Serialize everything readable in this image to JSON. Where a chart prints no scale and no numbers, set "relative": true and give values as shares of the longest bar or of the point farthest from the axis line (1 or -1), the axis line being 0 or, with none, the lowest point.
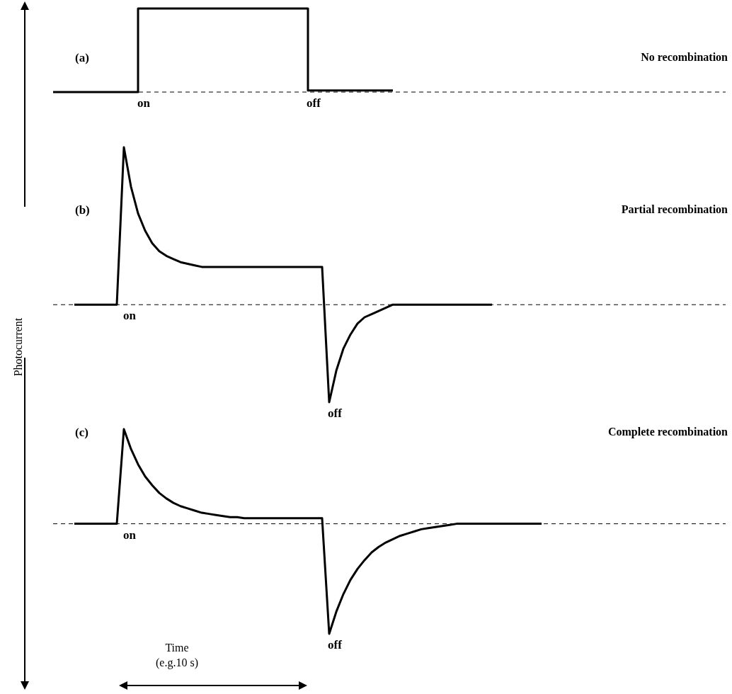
{
  "chart_data": [
    {
      "type": "step",
      "title": "(a)",
      "subtitle": "No recombination",
      "relative": true,
      "color": "#000000",
      "marker": "none",
      "annotations": [
        "on",
        "off"
      ],
      "ref_lines": [
        {
          "axis": "y",
          "value": 0,
          "line_style": "dashed"
        }
      ],
      "categories": [
        null,
        null,
        null,
        null,
        null,
        null,
        null,
        null,
        null,
        null,
        null,
        null,
        null,
        null,
        null,
        null,
        null,
        null,
        null,
        null,
        null,
        null,
        null,
        null,
        null,
        null,
        null,
        null,
        null,
        null,
        null,
        null,
        null,
        null,
        null,
        null,
        null,
        null,
        null,
        null,
        null,
        null,
        null,
        null,
        null,
        null,
        null,
        null,
        null,
        null,
        null,
        null,
        null,
        null,
        null,
        null,
        null,
        null,
        null,
        null,
        null,
        null,
        null,
        null,
        null,
        null,
        null,
        null,
        null,
        null,
        null,
        null,
        null,
        null,
        null,
        null,
        null,
        null,
        null,
        null,
        null,
        null,
        null,
        null,
        null,
        null,
        null,
        null,
        null,
        null,
        null,
        null,
        null,
        null,
        null,
        null
      ],
      "values": [
        0,
        0,
        0,
        0,
        0,
        0,
        0,
        0,
        0,
        0,
        0,
        0,
        1,
        1,
        1,
        1,
        1,
        1,
        1,
        1,
        1,
        1,
        1,
        1,
        1,
        1,
        1,
        1,
        1,
        1,
        1,
        1,
        1,
        1,
        1,
        1,
        0.02,
        0.02,
        0.02,
        0.02,
        0.02,
        0.02,
        0.02,
        0.02,
        0.02,
        0.02,
        0.02,
        0.02,
        0.02,
        null,
        null,
        null,
        null,
        null,
        null,
        null,
        null,
        null,
        null,
        null,
        null,
        null,
        null,
        null,
        null,
        null,
        null,
        null,
        null,
        null,
        null,
        null,
        null,
        null,
        null,
        null,
        null,
        null,
        null,
        null,
        null,
        null,
        null,
        null,
        null,
        null,
        null,
        null,
        null,
        null,
        null,
        null,
        null,
        null,
        null,
        null
      ]
    },
    {
      "type": "line",
      "title": "(b)",
      "subtitle": "Partial recombination",
      "ylabel": "Photocurrent",
      "relative": true,
      "color": "#000000",
      "marker": "none",
      "annotations": [
        "on",
        "off"
      ],
      "ref_lines": [
        {
          "axis": "y",
          "value": 0,
          "line_style": "dashed"
        }
      ],
      "categories": [
        null,
        null,
        null,
        null,
        null,
        null,
        null,
        null,
        null,
        null,
        null,
        null,
        null,
        null,
        null,
        null,
        null,
        null,
        null,
        null,
        null,
        null,
        null,
        null,
        null,
        null,
        null,
        null,
        null,
        null,
        null,
        null,
        null,
        null,
        null,
        null,
        null,
        null,
        null,
        null,
        null,
        null,
        null,
        null,
        null,
        null,
        null,
        null,
        null,
        null,
        null,
        null,
        null,
        null,
        null,
        null,
        null,
        null,
        null,
        null,
        null,
        null,
        null,
        null,
        null,
        null,
        null,
        null,
        null,
        null,
        null,
        null,
        null,
        null,
        null,
        null,
        null,
        null,
        null,
        null,
        null,
        null,
        null,
        null,
        null,
        null,
        null,
        null,
        null,
        null,
        null,
        null,
        null,
        null,
        null,
        null
      ],
      "values": [
        null,
        null,
        null,
        0,
        0,
        0,
        0,
        0,
        0,
        0,
        1,
        0.75,
        0.58,
        0.47,
        0.39,
        0.34,
        0.31,
        0.29,
        0.27,
        0.26,
        0.25,
        0.24,
        0.24,
        0.24,
        0.24,
        0.24,
        0.24,
        0.24,
        0.24,
        0.24,
        0.24,
        0.24,
        0.24,
        0.24,
        0.24,
        0.24,
        0.24,
        0.24,
        0.24,
        -0.62,
        -0.42,
        -0.28,
        -0.19,
        -0.12,
        -0.08,
        -0.06,
        -0.04,
        -0.02,
        0,
        0,
        0,
        0,
        0,
        0,
        0,
        0,
        0,
        0,
        0,
        0,
        0,
        0,
        0,
        null,
        null,
        null,
        null,
        null,
        null,
        null,
        null,
        null,
        null,
        null,
        null,
        null,
        null,
        null,
        null,
        null,
        null,
        null,
        null,
        null,
        null,
        null,
        null,
        null,
        null,
        null,
        null,
        null,
        null,
        null,
        null,
        null
      ]
    },
    {
      "type": "line",
      "title": "(c)",
      "subtitle": "Complete recombination",
      "xlabel": "Time\n(e.g.10 s)",
      "relative": true,
      "color": "#000000",
      "marker": "none",
      "annotations": [
        "on",
        "off"
      ],
      "ref_lines": [
        {
          "axis": "y",
          "value": 0,
          "line_style": "dashed"
        }
      ],
      "categories": [
        null,
        null,
        null,
        null,
        null,
        null,
        null,
        null,
        null,
        null,
        null,
        null,
        null,
        null,
        null,
        null,
        null,
        null,
        null,
        null,
        null,
        null,
        null,
        null,
        null,
        null,
        null,
        null,
        null,
        null,
        null,
        null,
        null,
        null,
        null,
        null,
        null,
        null,
        null,
        null,
        null,
        null,
        null,
        null,
        null,
        null,
        null,
        null,
        null,
        null,
        null,
        null,
        null,
        null,
        null,
        null,
        null,
        null,
        null,
        null,
        null,
        null,
        null,
        null,
        null,
        null,
        null,
        null,
        null,
        null,
        null,
        null,
        null,
        null,
        null,
        null,
        null,
        null,
        null,
        null,
        null,
        null,
        null,
        null,
        null,
        null,
        null,
        null,
        null,
        null,
        null,
        null,
        null,
        null,
        null,
        null
      ],
      "values": [
        null,
        null,
        null,
        0,
        0,
        0,
        0,
        0,
        0,
        0,
        0.86,
        0.68,
        0.54,
        0.43,
        0.35,
        0.28,
        0.23,
        0.19,
        0.16,
        0.14,
        0.12,
        0.1,
        0.09,
        0.08,
        0.07,
        0.06,
        0.06,
        0.05,
        0.05,
        0.05,
        0.05,
        0.05,
        0.05,
        0.05,
        0.05,
        0.05,
        0.05,
        0.05,
        0.05,
        -1,
        -0.8,
        -0.64,
        -0.51,
        -0.41,
        -0.33,
        -0.26,
        -0.21,
        -0.17,
        -0.14,
        -0.11,
        -0.09,
        -0.07,
        -0.05,
        -0.04,
        -0.03,
        -0.02,
        -0.01,
        0,
        0,
        0,
        0,
        0,
        0,
        0,
        0,
        0,
        0,
        0,
        0,
        0,
        null,
        null,
        null,
        null,
        null,
        null,
        null,
        null,
        null,
        null,
        null,
        null,
        null,
        null,
        null,
        null,
        null,
        null,
        null,
        null,
        null,
        null,
        null,
        null,
        null,
        null
      ]
    }
  ]
}
